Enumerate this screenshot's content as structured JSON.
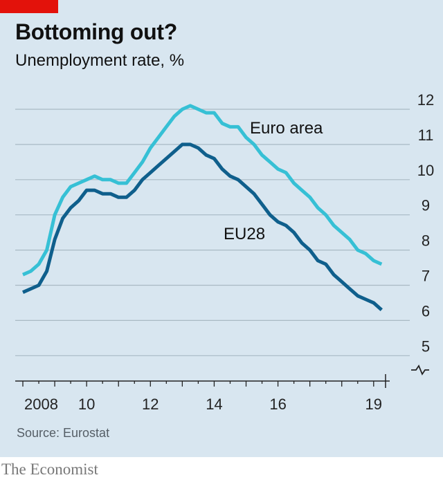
{
  "header": {
    "title": "Bottoming out?",
    "subtitle": "Unemployment rate, %"
  },
  "footer": {
    "source": "Source: Eurostat",
    "logo": "The Economist"
  },
  "colors": {
    "background": "#d8e6f0",
    "brand_red": "#e3120b",
    "euro_area": "#36c0d5",
    "eu28": "#0f5f8c"
  },
  "chart_data": {
    "type": "line",
    "ylim": [
      5,
      12
    ],
    "y_ticks": [
      "12",
      "11",
      "10",
      "9",
      "8",
      "7",
      "6",
      "5"
    ],
    "y_break_below": 5,
    "x_range": [
      2008.0,
      2019.33
    ],
    "x_ticks": [
      "2008",
      "10",
      "12",
      "14",
      "16",
      "19"
    ],
    "x_tick_values": [
      2008,
      2010,
      2012,
      2014,
      2016,
      2019
    ],
    "grid": true,
    "y_axis_side": "right",
    "series": [
      {
        "name": "Euro area",
        "x": [
          2008.0,
          2008.25,
          2008.5,
          2008.75,
          2009.0,
          2009.25,
          2009.5,
          2009.75,
          2010.0,
          2010.25,
          2010.5,
          2010.75,
          2011.0,
          2011.25,
          2011.5,
          2011.75,
          2012.0,
          2012.25,
          2012.5,
          2012.75,
          2013.0,
          2013.25,
          2013.5,
          2013.75,
          2014.0,
          2014.25,
          2014.5,
          2014.75,
          2015.0,
          2015.25,
          2015.5,
          2015.75,
          2016.0,
          2016.25,
          2016.5,
          2016.75,
          2017.0,
          2017.25,
          2017.5,
          2017.75,
          2018.0,
          2018.25,
          2018.5,
          2018.75,
          2019.0,
          2019.25
        ],
        "y": [
          7.3,
          7.4,
          7.6,
          8.0,
          9.0,
          9.5,
          9.8,
          9.9,
          10.0,
          10.1,
          10.0,
          10.0,
          9.9,
          9.9,
          10.2,
          10.5,
          10.9,
          11.2,
          11.5,
          11.8,
          12.0,
          12.1,
          12.0,
          11.9,
          11.9,
          11.6,
          11.5,
          11.5,
          11.2,
          11.0,
          10.7,
          10.5,
          10.3,
          10.2,
          9.9,
          9.7,
          9.5,
          9.2,
          9.0,
          8.7,
          8.5,
          8.3,
          8.0,
          7.9,
          7.7,
          7.6
        ]
      },
      {
        "name": "EU28",
        "x": [
          2008.0,
          2008.25,
          2008.5,
          2008.75,
          2009.0,
          2009.25,
          2009.5,
          2009.75,
          2010.0,
          2010.25,
          2010.5,
          2010.75,
          2011.0,
          2011.25,
          2011.5,
          2011.75,
          2012.0,
          2012.25,
          2012.5,
          2012.75,
          2013.0,
          2013.25,
          2013.5,
          2013.75,
          2014.0,
          2014.25,
          2014.5,
          2014.75,
          2015.0,
          2015.25,
          2015.5,
          2015.75,
          2016.0,
          2016.25,
          2016.5,
          2016.75,
          2017.0,
          2017.25,
          2017.5,
          2017.75,
          2018.0,
          2018.25,
          2018.5,
          2018.75,
          2019.0,
          2019.25
        ],
        "y": [
          6.8,
          6.9,
          7.0,
          7.4,
          8.3,
          8.9,
          9.2,
          9.4,
          9.7,
          9.7,
          9.6,
          9.6,
          9.5,
          9.5,
          9.7,
          10.0,
          10.2,
          10.4,
          10.6,
          10.8,
          11.0,
          11.0,
          10.9,
          10.7,
          10.6,
          10.3,
          10.1,
          10.0,
          9.8,
          9.6,
          9.3,
          9.0,
          8.8,
          8.7,
          8.5,
          8.2,
          8.0,
          7.7,
          7.6,
          7.3,
          7.1,
          6.9,
          6.7,
          6.6,
          6.5,
          6.3
        ]
      }
    ]
  }
}
